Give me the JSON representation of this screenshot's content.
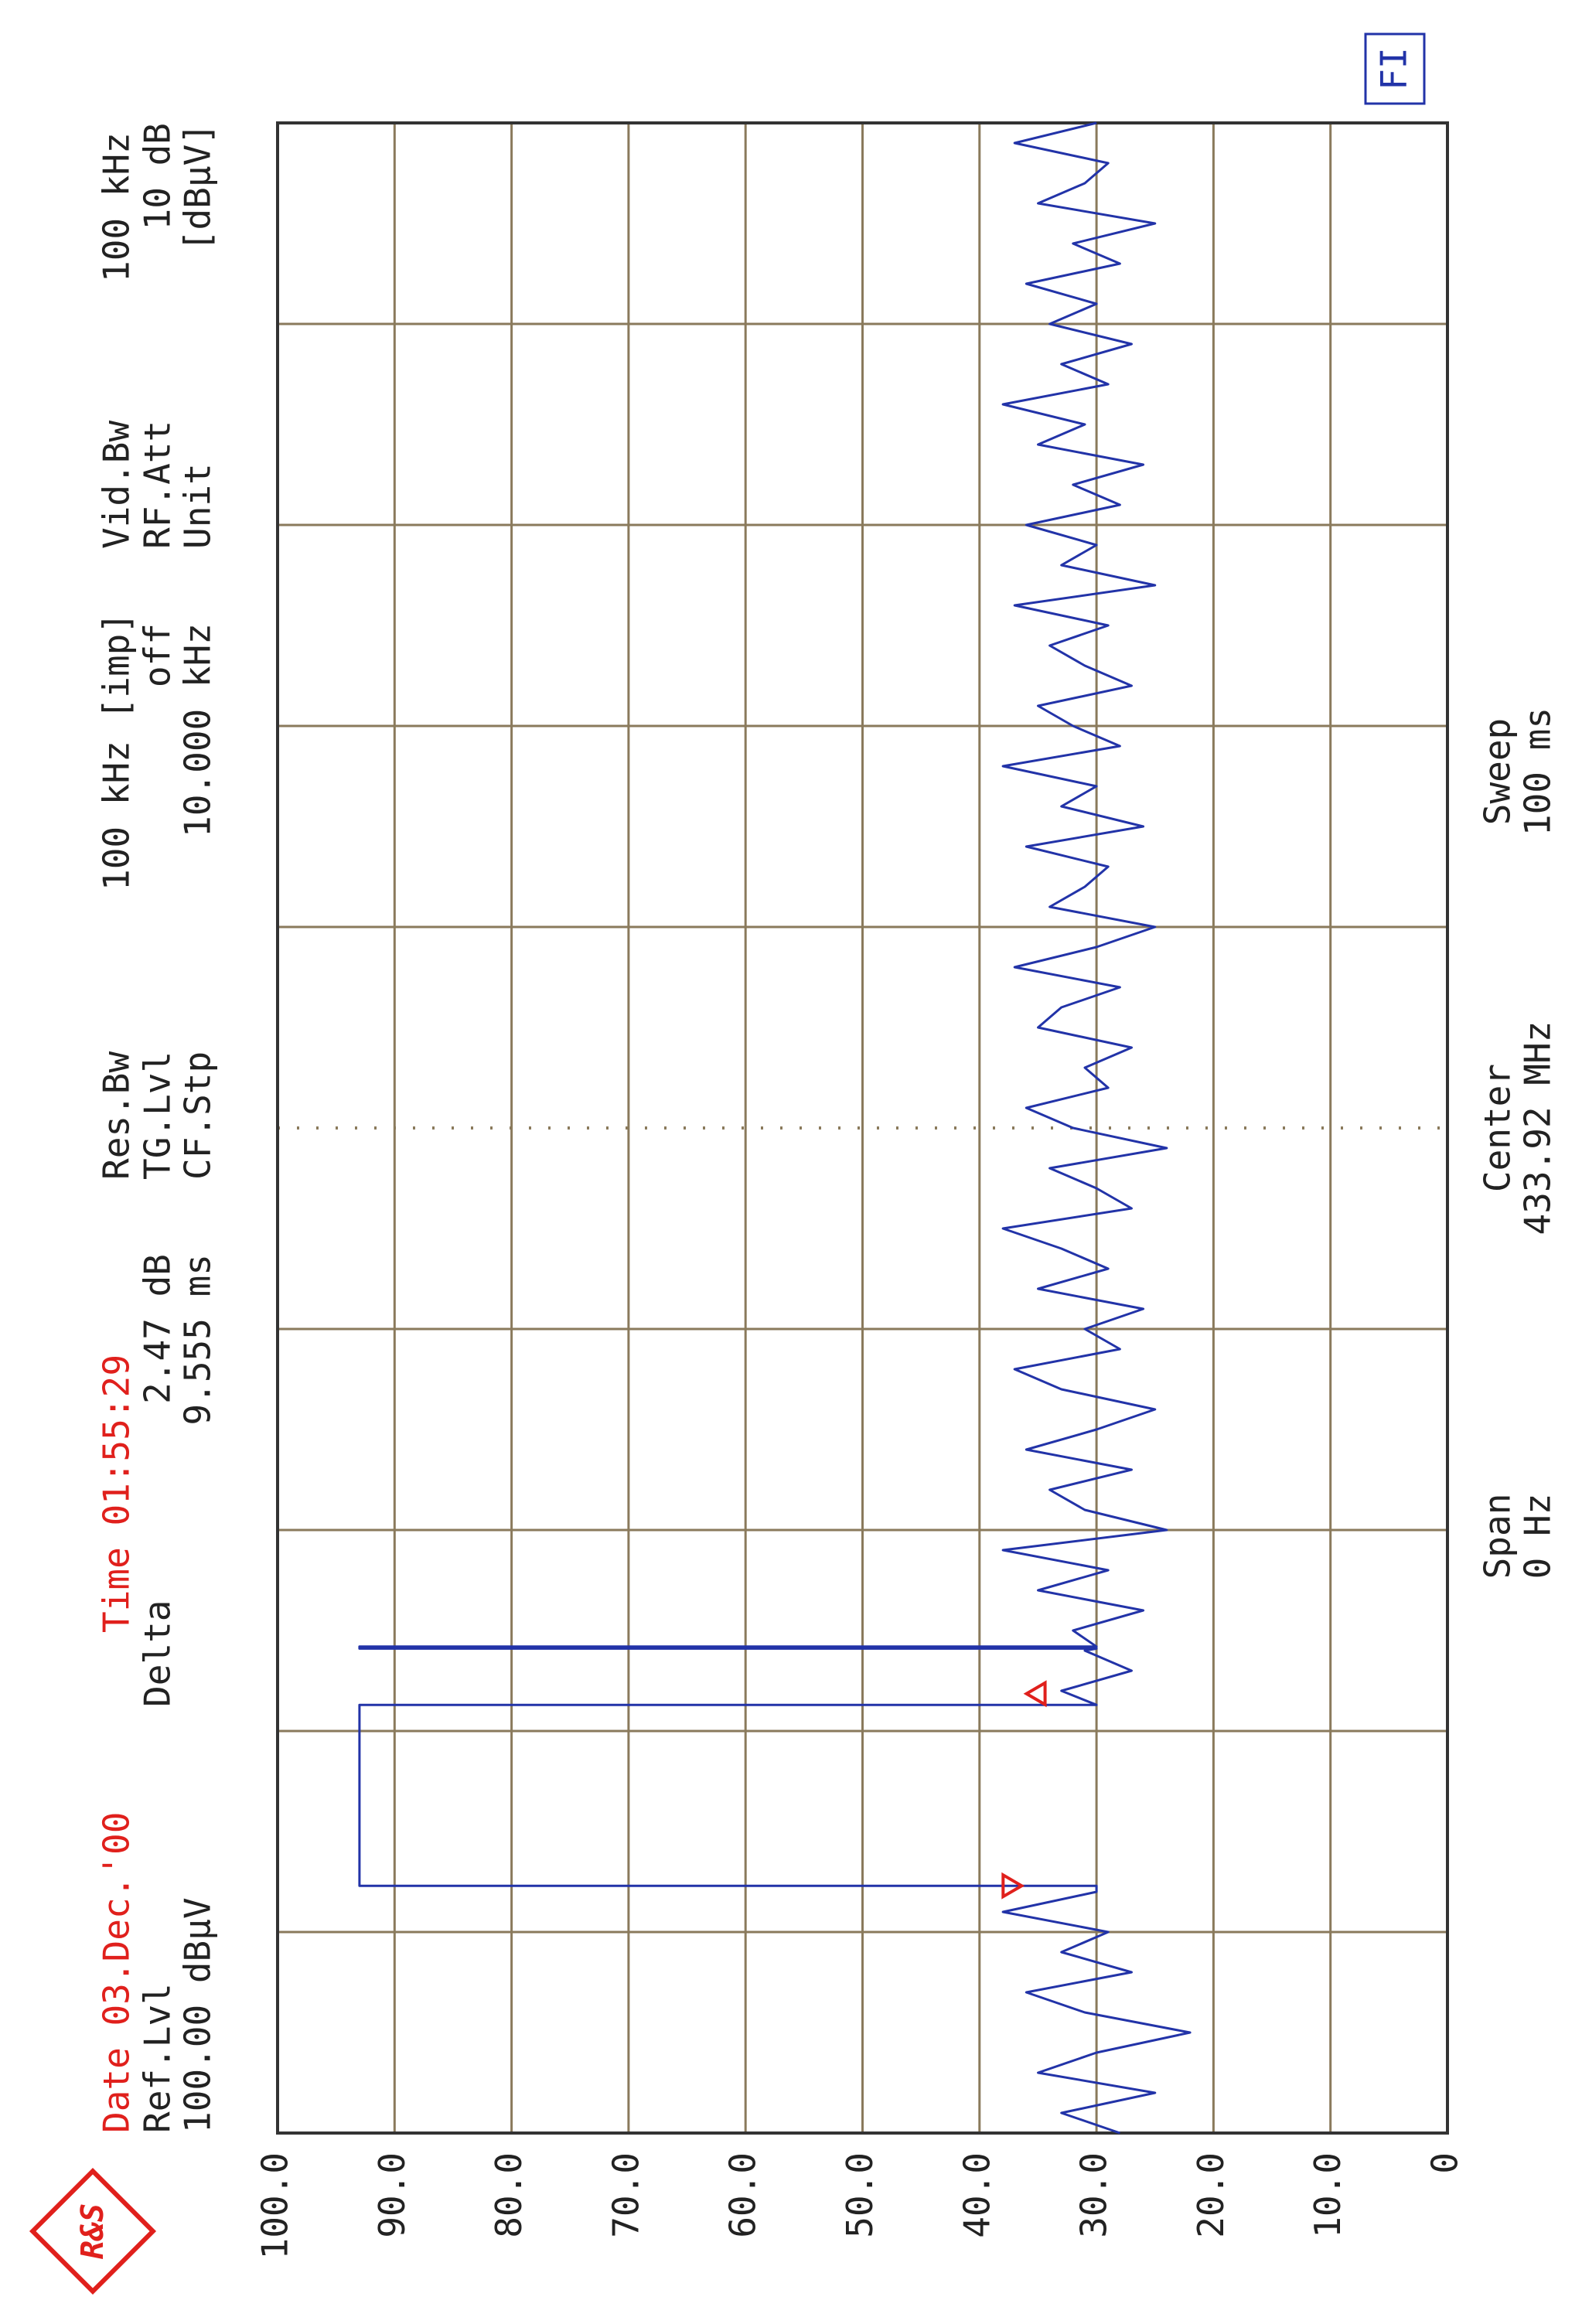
{
  "logo_text": "R&S",
  "chart_data": {
    "type": "line",
    "date": "Date 03.Dec.'00",
    "time": "Time 01:55:29",
    "ref_label": "Ref.Lvl",
    "ref_value": "100.00 dBµV",
    "delta_label": "Delta",
    "delta_level": "2.47 dB",
    "delta_time": "9.555 ms",
    "res_bw_label": "Res.Bw",
    "res_bw": "100 kHz [imp]",
    "tg_lvl_label": "TG.Lvl",
    "tg_lvl": "off",
    "cf_stp_label": "CF.Stp",
    "cf_stp": "10.000 kHz",
    "vid_bw_label": "Vid.Bw",
    "vid_bw": "100 kHz",
    "rf_att_label": "RF.Att",
    "rf_att": "10 dB",
    "unit_label": "Unit",
    "unit": "[dBµV]",
    "center_label": "Center",
    "center": "433.92 MHz",
    "span_label": "Span",
    "span": "0 Hz",
    "sweep_label": "Sweep",
    "sweep": "100 ms",
    "badge": "FI",
    "xlim": [
      0,
      100
    ],
    "ylim": [
      0,
      100
    ],
    "yticks": [
      {
        "value": 100,
        "label": "100.0"
      },
      {
        "value": 90,
        "label": "90.0"
      },
      {
        "value": 80,
        "label": "80.0"
      },
      {
        "value": 70,
        "label": "70.0"
      },
      {
        "value": 60,
        "label": "60.0"
      },
      {
        "value": 50,
        "label": "50.0"
      },
      {
        "value": 40,
        "label": "40.0"
      },
      {
        "value": 30,
        "label": "30.0"
      },
      {
        "value": 20,
        "label": "20.0"
      },
      {
        "value": 10,
        "label": "10.0"
      },
      0
    ],
    "grid": true,
    "series": [
      {
        "color": "#2233a8",
        "x": [
          0,
          1,
          2,
          3,
          4,
          5,
          6,
          7,
          8,
          9,
          10,
          11,
          12,
          12.3,
          12.3,
          21.3,
          21.3,
          22,
          23,
          24,
          24.1,
          24.1,
          24.2,
          24.2,
          25,
          26,
          27,
          28,
          29,
          30,
          31,
          32,
          33,
          34,
          35,
          36,
          37,
          38,
          39,
          40,
          41,
          42,
          43,
          44,
          45,
          46,
          47,
          48,
          49,
          50,
          51,
          52,
          53,
          54,
          55,
          56,
          57,
          58,
          59,
          60,
          61,
          62,
          63,
          64,
          65,
          66,
          67,
          68,
          69,
          70,
          71,
          72,
          73,
          74,
          75,
          76,
          77,
          78,
          79,
          80,
          81,
          82,
          83,
          84,
          85,
          86,
          87,
          88,
          89,
          90,
          91,
          92,
          93,
          94,
          95,
          96,
          97,
          98,
          99,
          100
        ],
        "values": [
          28,
          33,
          25,
          35,
          30,
          22,
          31,
          36,
          27,
          33,
          29,
          38,
          30,
          30,
          93,
          93,
          30,
          33,
          27,
          31,
          30,
          93,
          93,
          30,
          32,
          26,
          35,
          29,
          38,
          24,
          31,
          34,
          27,
          36,
          30,
          25,
          33,
          37,
          28,
          31,
          26,
          35,
          29,
          33,
          38,
          27,
          30,
          34,
          24,
          32,
          36,
          29,
          31,
          27,
          35,
          33,
          28,
          37,
          30,
          25,
          34,
          31,
          29,
          36,
          26,
          33,
          30,
          38,
          28,
          32,
          35,
          27,
          31,
          34,
          29,
          37,
          25,
          33,
          30,
          36,
          28,
          32,
          26,
          35,
          31,
          38,
          29,
          33,
          27,
          34,
          30,
          36,
          28,
          32,
          25,
          35,
          31,
          29,
          37,
          30
        ]
      }
    ],
    "markers": [
      {
        "x": 12.3,
        "y": 36
      },
      {
        "x": 21.855,
        "y": 34
      }
    ]
  }
}
